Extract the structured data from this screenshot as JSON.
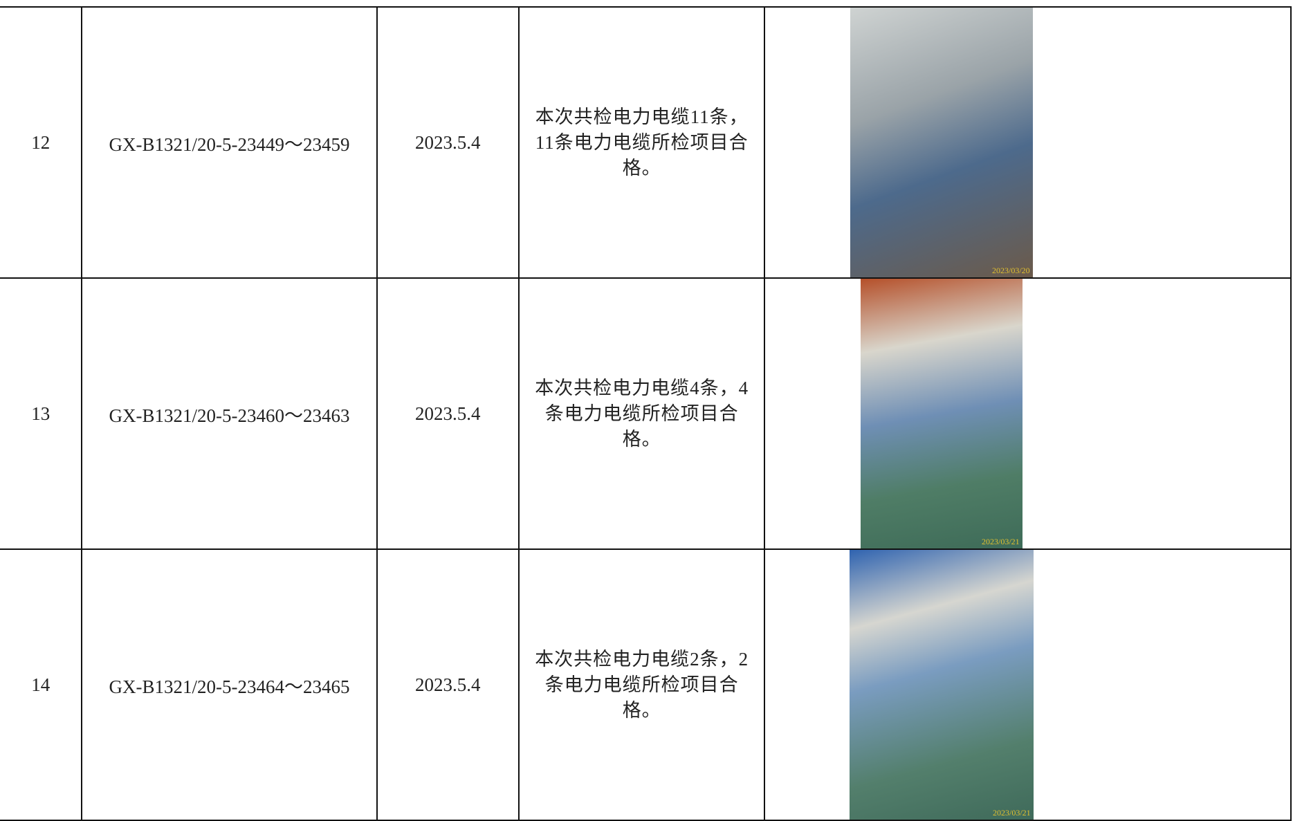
{
  "table": {
    "rows": [
      [
        "12",
        "GX-B1321/20-5-23449～23459",
        "2023.5.4",
        "本次共检电力电缆11条，11条电力电缆所检项目合格。",
        "2023/03/20"
      ],
      [
        "13",
        "GX-B1321/20-5-23460～23463",
        "2023.5.4",
        "本次共检电力电缆4条，4条电力电缆所检项目合格。",
        "2023/03/21"
      ],
      [
        "14",
        "GX-B1321/20-5-23464～23465",
        "2023.5.4",
        "本次共检电力电缆2条，2条电力电缆所检项目合格。",
        "2023/03/21"
      ]
    ]
  }
}
